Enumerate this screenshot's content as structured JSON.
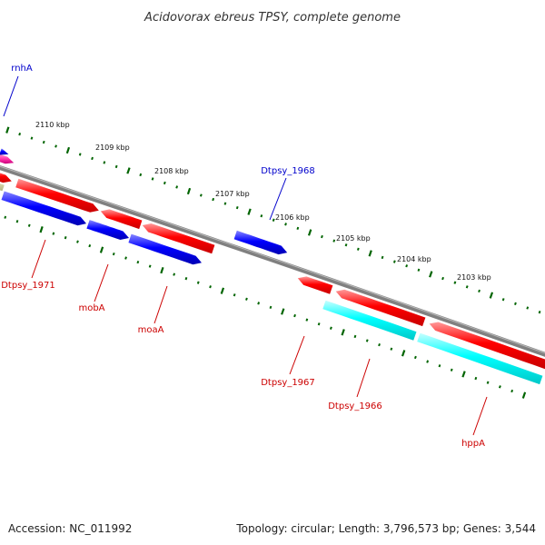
{
  "title": "Acidovorax ebreus TPSY, complete genome",
  "accession": "Accession: NC_011992",
  "summary": "Topology: circular; Length: 3,796,573 bp; Genes: 3,544",
  "colors": {
    "backbone": "#808080",
    "forward_gene": "#ff0000",
    "reverse_gene": "#0000ff",
    "rna": "#00ffff",
    "pseudo": "#ff33aa",
    "other": "#b4b482",
    "ruler": "#006400",
    "label_forward": "#cc0000",
    "label_reverse": "#0000cc"
  },
  "ticks": [
    {
      "label": "2110 kbp"
    },
    {
      "label": "2109 kbp"
    },
    {
      "label": "2108 kbp"
    },
    {
      "label": "2107 kbp"
    },
    {
      "label": "2106 kbp"
    },
    {
      "label": "2105 kbp"
    },
    {
      "label": "2104 kbp"
    },
    {
      "label": "2103 kbp"
    }
  ],
  "gene_labels": [
    {
      "text": "rnhA"
    },
    {
      "text": "Dtpsy_1968"
    },
    {
      "text": "Dtpsy_1971"
    },
    {
      "text": "mobA"
    },
    {
      "text": "moaA"
    },
    {
      "text": "Dtpsy_1967"
    },
    {
      "text": "Dtpsy_1966"
    },
    {
      "text": "hppA"
    }
  ]
}
